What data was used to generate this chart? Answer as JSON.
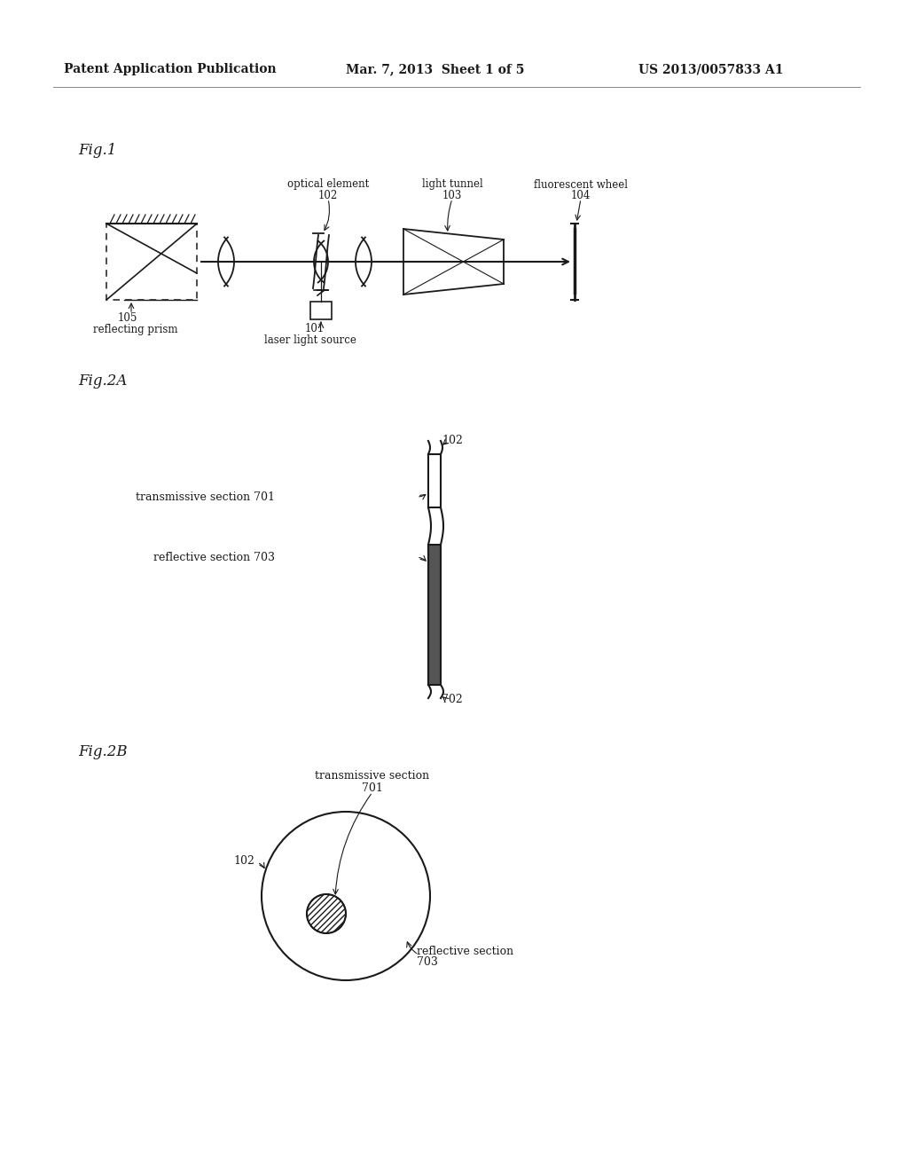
{
  "bg_color": "#ffffff",
  "header_left": "Patent Application Publication",
  "header_mid": "Mar. 7, 2013  Sheet 1 of 5",
  "header_right": "US 2013/0057833 A1",
  "fig1_label": "Fig.1",
  "fig2a_label": "Fig.2A",
  "fig2b_label": "Fig.2B",
  "line_color": "#1a1a1a",
  "text_color": "#1a1a1a"
}
